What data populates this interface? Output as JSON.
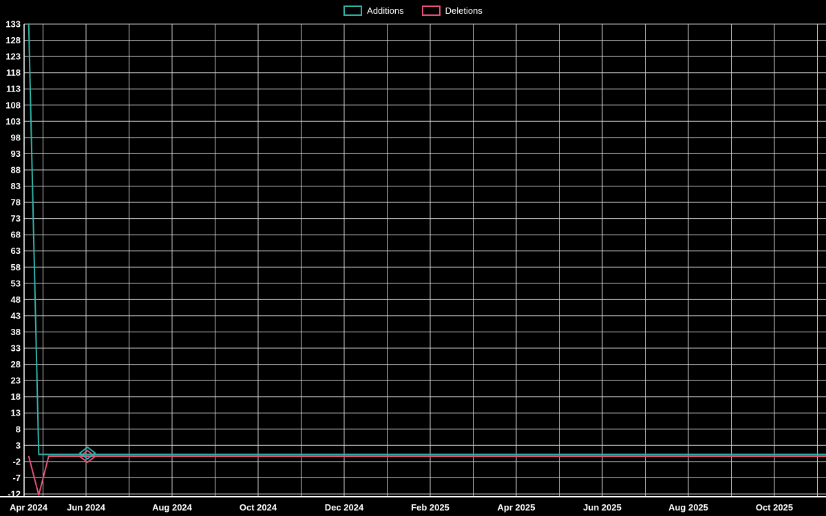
{
  "chart_data": {
    "type": "line",
    "title": "",
    "background": "#000000",
    "text_color": "#ffffff",
    "grid_color": "#cfcfcf",
    "axis_color": "#ffffff",
    "legend": [
      {
        "name": "Additions",
        "color": "#2fb4aa"
      },
      {
        "name": "Deletions",
        "color": "#e8527a"
      }
    ],
    "x_axis": {
      "start_month": "Apr 2024",
      "end_month": "Nov 2025",
      "tick_labels": [
        "Apr 2024",
        "Jun 2024",
        "Aug 2024",
        "Oct 2024",
        "Dec 2024",
        "Feb 2025",
        "Apr 2025",
        "Jun 2025",
        "Aug 2025",
        "Oct 2025"
      ]
    },
    "y_axis": {
      "min": -12,
      "max": 133,
      "tick_step": 5,
      "tick_labels": [
        133,
        128,
        123,
        118,
        113,
        108,
        103,
        98,
        93,
        88,
        83,
        78,
        73,
        68,
        63,
        58,
        53,
        48,
        43,
        38,
        33,
        28,
        23,
        18,
        13,
        8,
        3,
        -2,
        -7,
        -12
      ]
    },
    "grid": {
      "horizontal_every": 5,
      "vertical": "monthly"
    },
    "series": [
      {
        "name": "Additions",
        "color": "#2fb4aa",
        "points": [
          {
            "x": "2024-04-21",
            "y": 133
          },
          {
            "x": "2024-04-28",
            "y": 0
          },
          {
            "x": "2025-11-09",
            "y": 0
          }
        ],
        "markers": [
          {
            "x": "2024-06-02",
            "y": 0
          }
        ]
      },
      {
        "name": "Deletions",
        "color": "#e8527a",
        "points": [
          {
            "x": "2024-04-21",
            "y": 0
          },
          {
            "x": "2024-04-28",
            "y": -12
          },
          {
            "x": "2024-05-05",
            "y": 0
          },
          {
            "x": "2025-11-09",
            "y": 0
          }
        ],
        "markers": [
          {
            "x": "2024-06-02",
            "y": 0
          }
        ]
      }
    ]
  }
}
